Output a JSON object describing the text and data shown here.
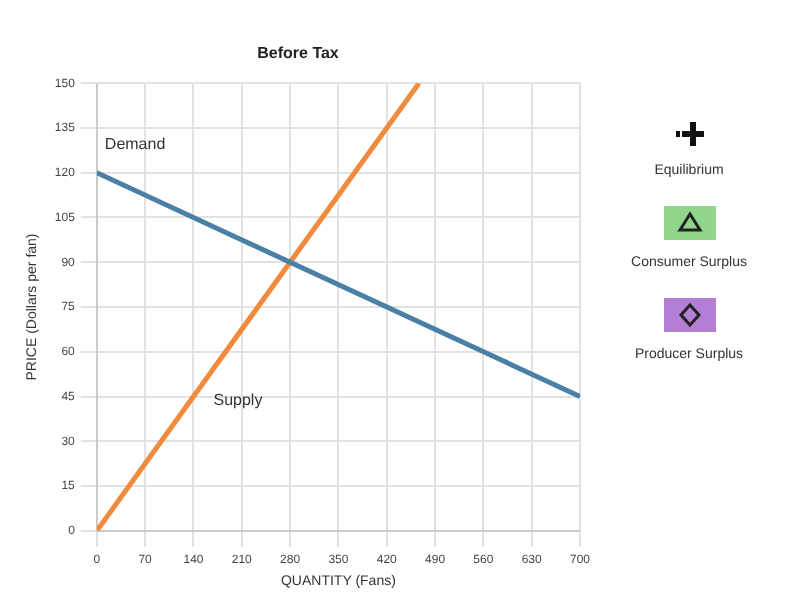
{
  "chart_data": {
    "type": "line",
    "title": "Before Tax",
    "xlabel": "QUANTITY (Fans)",
    "ylabel": "PRICE (Dollars per fan)",
    "series": [
      {
        "name": "Demand",
        "color": "#4a7fa6",
        "x": [
          0,
          700
        ],
        "values": [
          120,
          45
        ]
      },
      {
        "name": "Supply",
        "color": "#f08a3c",
        "x": [
          0,
          466.7
        ],
        "values": [
          0,
          150
        ]
      }
    ],
    "xlim": [
      0,
      700
    ],
    "xticks": [
      0,
      70,
      140,
      210,
      280,
      350,
      420,
      490,
      560,
      630,
      700
    ],
    "ylim": [
      0,
      150
    ],
    "yticks": [
      0,
      15,
      30,
      45,
      60,
      75,
      90,
      105,
      120,
      135,
      150
    ],
    "grid": true,
    "marker": "none",
    "line_style": "solid",
    "annotations": [
      "Equilibrium",
      "Consumer Surplus",
      "Producer Surplus"
    ]
  }
}
